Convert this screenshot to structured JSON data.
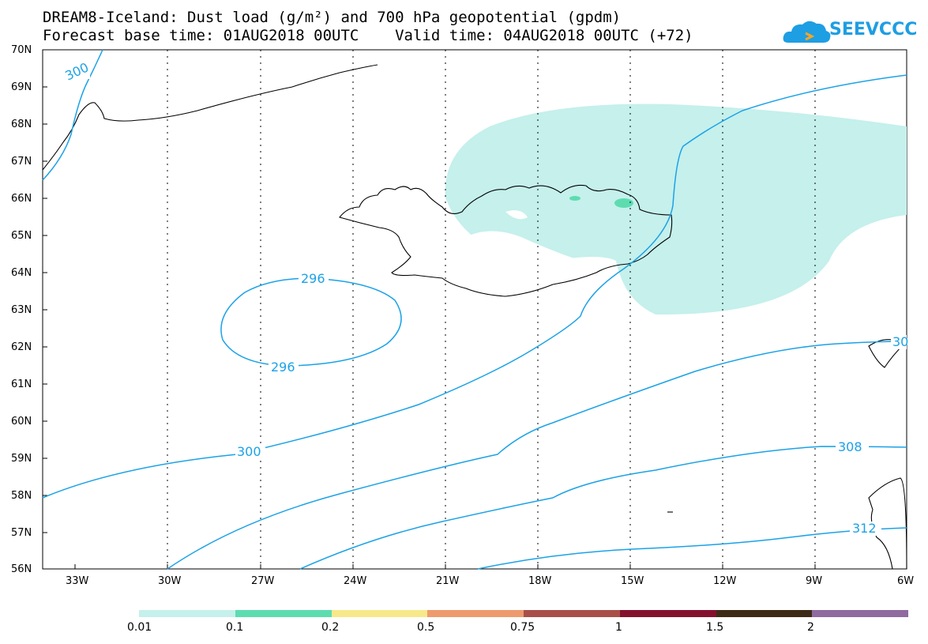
{
  "title": {
    "line1": "DREAM8-Iceland: Dust load (g/m²) and 700 hPa geopotential (gpdm)",
    "line2": "Forecast base time: 01AUG2018 00UTC    Valid time: 04AUG2018 00UTC (+72)"
  },
  "logo": {
    "text": "SEEVCCC",
    "icon": "cloud-icon",
    "color": "#1e9ee3"
  },
  "map": {
    "lat_labels": [
      "70N",
      "69N",
      "68N",
      "67N",
      "66N",
      "65N",
      "64N",
      "63N",
      "62N",
      "61N",
      "60N",
      "59N",
      "58N",
      "57N",
      "56N"
    ],
    "lon_labels": [
      "33W",
      "30W",
      "27W",
      "24W",
      "21W",
      "18W",
      "15W",
      "12W",
      "9W",
      "6W"
    ],
    "contour_color": "#1ba2e6",
    "dust_fill_color": "#c5f0ec",
    "contour_labels": [
      "300",
      "296",
      "296",
      "300",
      "308",
      "312",
      "30"
    ]
  },
  "colorbar": {
    "colors": [
      "#c5f0ec",
      "#5ddcb0",
      "#f7e98a",
      "#ee9a6e",
      "#a85048",
      "#85102e",
      "#3d2b18",
      "#8f6ba0"
    ],
    "labels": [
      "0.01",
      "0.1",
      "0.2",
      "0.5",
      "0.75",
      "1",
      "1.5",
      "2"
    ]
  }
}
